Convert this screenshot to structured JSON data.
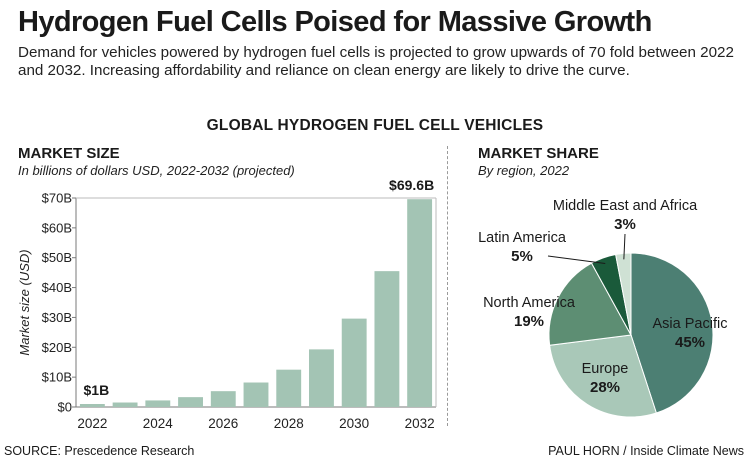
{
  "header": {
    "title": "Hydrogen Fuel Cells Poised for Massive Growth",
    "subtitle": "Demand for vehicles powered by hydrogen fuel cells is projected to grow upwards of 70 fold between 2022 and 2032. Increasing affordability and reliance on clean energy are likely to drive the curve."
  },
  "section_title": "GLOBAL HYDROGEN FUEL CELL VEHICLES",
  "market_size": {
    "title": "MARKET SIZE",
    "subtitle": "In billions of dollars USD, 2022-2032 (projected)"
  },
  "market_share": {
    "title": "MARKET SHARE",
    "subtitle": "By region, 2022"
  },
  "footer": {
    "source": "SOURCE: Prescedence Research",
    "credit": "PAUL HORN / Inside Climate News"
  },
  "colors": {
    "bar": "#a3c4b4",
    "asia_pacific": "#4c7f73",
    "europe": "#a9c8b8",
    "north_america": "#5d8e73",
    "latin_america": "#1a5a3a",
    "middle_east_africa": "#cfe1d4"
  },
  "chart_data": [
    {
      "type": "bar",
      "title": "MARKET SIZE",
      "ylabel": "Market size (USD)",
      "categories": [
        "2022",
        "2023",
        "2024",
        "2025",
        "2026",
        "2027",
        "2028",
        "2029",
        "2030",
        "2031",
        "2032"
      ],
      "x_tick_labels": [
        "2022",
        "2024",
        "2026",
        "2028",
        "2030",
        "2032"
      ],
      "values": [
        1.0,
        1.5,
        2.2,
        3.3,
        5.3,
        8.2,
        12.5,
        19.3,
        29.6,
        45.5,
        69.6
      ],
      "ylim": [
        0,
        70
      ],
      "y_ticks": [
        "$0",
        "$10B",
        "$20B",
        "$30B",
        "$40B",
        "$50B",
        "$60B",
        "$70B"
      ],
      "annotations": [
        {
          "category": "2022",
          "text": "$1B"
        },
        {
          "category": "2032",
          "text": "$69.6B"
        }
      ],
      "grid": false
    },
    {
      "type": "pie",
      "title": "MARKET SHARE",
      "slices": [
        {
          "label": "Asia Pacific",
          "pct_label": "45%",
          "value": 45,
          "color_key": "asia_pacific"
        },
        {
          "label": "Europe",
          "pct_label": "28%",
          "value": 28,
          "color_key": "europe"
        },
        {
          "label": "North America",
          "pct_label": "19%",
          "value": 19,
          "color_key": "north_america"
        },
        {
          "label": "Latin America",
          "pct_label": "5%",
          "value": 5,
          "color_key": "latin_america"
        },
        {
          "label": "Middle East and Africa",
          "pct_label": "3%",
          "value": 3,
          "color_key": "middle_east_africa"
        }
      ]
    }
  ]
}
